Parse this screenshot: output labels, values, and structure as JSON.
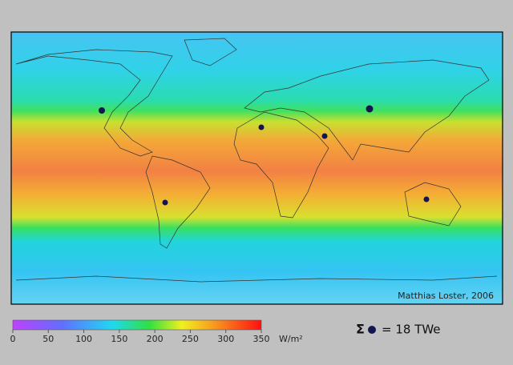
{
  "map": {
    "credit": "Matthias Loster, 2006"
  },
  "colorbar": {
    "ylim": [
      0,
      350
    ],
    "ticks": [
      0,
      50,
      100,
      150,
      200,
      250,
      300,
      350
    ],
    "unit": "W/m²"
  },
  "legend": {
    "symbol": "Σ",
    "text": "= 18 TWe"
  }
}
